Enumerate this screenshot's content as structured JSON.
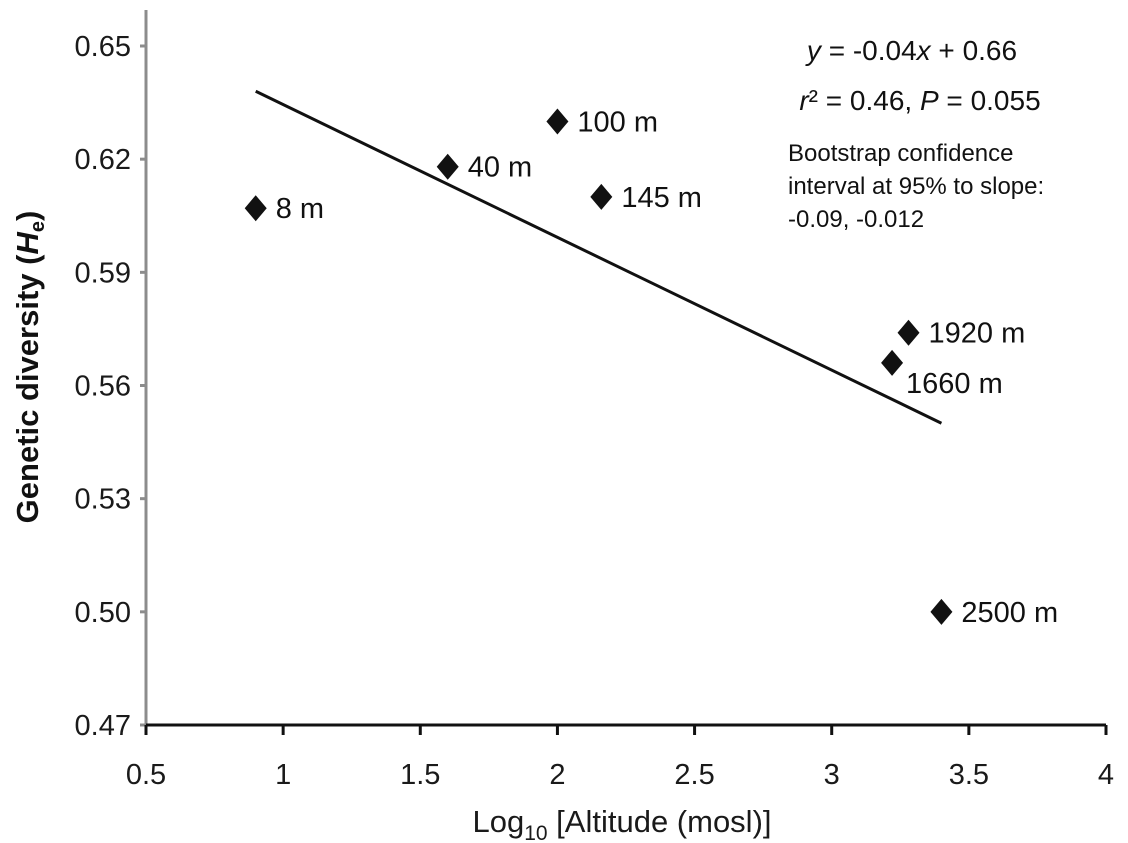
{
  "chart_data": {
    "type": "scatter",
    "xlabel": {
      "prefix": "Log",
      "sub": "10",
      "suffix": " [Altitude (mosl)]"
    },
    "ylabel": {
      "prefix": "Genetic diversity (",
      "var": "H",
      "sub": "e",
      "suffix": ")"
    },
    "xlim": [
      0.5,
      4
    ],
    "ylim": [
      0.47,
      0.65
    ],
    "xticks": [
      "0.5",
      "1",
      "1.5",
      "2",
      "2.5",
      "3",
      "3.5",
      "4"
    ],
    "yticks": [
      "0.47",
      "0.50",
      "0.53",
      "0.56",
      "0.59",
      "0.62",
      "0.65"
    ],
    "grid": false,
    "marker": "diamond",
    "points": [
      {
        "label": "8 m",
        "x": 0.9,
        "y": 0.607
      },
      {
        "label": "40 m",
        "x": 1.6,
        "y": 0.618
      },
      {
        "label": "100 m",
        "x": 2.0,
        "y": 0.63
      },
      {
        "label": "145 m",
        "x": 2.16,
        "y": 0.61
      },
      {
        "label": "1660 m",
        "x": 3.22,
        "y": 0.566
      },
      {
        "label": "1920 m",
        "x": 3.28,
        "y": 0.574
      },
      {
        "label": "2500 m",
        "x": 3.4,
        "y": 0.5
      }
    ],
    "trendline": {
      "x": [
        0.9,
        3.4
      ],
      "y": [
        0.638,
        0.55
      ]
    },
    "annotations": {
      "equation": {
        "y_var": "y",
        "eq_mid": " = -0.04",
        "x_var": "x",
        "eq_end": " + 0.66"
      },
      "stats": {
        "r_var": "r",
        "r_rest": "² = 0.46, ",
        "p_var": "P",
        "p_rest": " = 0.055"
      },
      "bootstrap_lines": [
        "Bootstrap confidence",
        "interval at 95% to slope:",
        "-0.09, -0.012"
      ]
    }
  }
}
